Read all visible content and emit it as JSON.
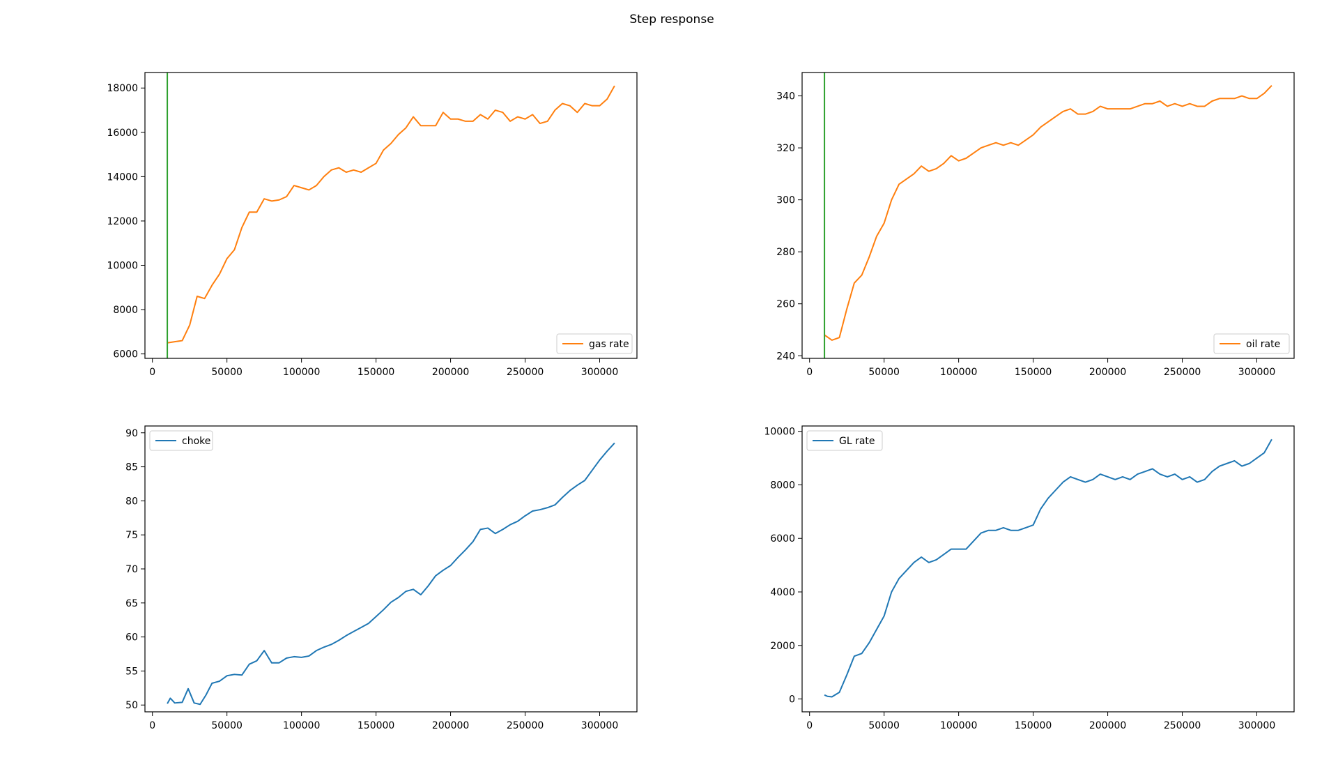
{
  "figure": {
    "title": "Step response"
  },
  "chart_data": [
    {
      "type": "line",
      "xlim": [
        -5000,
        325000
      ],
      "ylim": [
        5800,
        18700
      ],
      "xticks": [
        0,
        50000,
        100000,
        150000,
        200000,
        250000,
        300000
      ],
      "yticks": [
        6000,
        8000,
        10000,
        12000,
        14000,
        16000,
        18000
      ],
      "grid": false,
      "legend_position": "lower right",
      "vlines": [
        {
          "x": 10000,
          "color": "#2ca02c"
        }
      ],
      "series": [
        {
          "name": "gas rate",
          "color": "#ff7f0e",
          "x": [
            10000,
            15000,
            20000,
            25000,
            30000,
            35000,
            40000,
            45000,
            50000,
            55000,
            60000,
            65000,
            70000,
            75000,
            80000,
            85000,
            90000,
            95000,
            100000,
            105000,
            110000,
            115000,
            120000,
            125000,
            130000,
            135000,
            140000,
            145000,
            150000,
            155000,
            160000,
            165000,
            170000,
            175000,
            180000,
            185000,
            190000,
            195000,
            200000,
            205000,
            210000,
            215000,
            220000,
            225000,
            230000,
            235000,
            240000,
            245000,
            250000,
            255000,
            260000,
            265000,
            270000,
            275000,
            280000,
            285000,
            290000,
            295000,
            300000,
            305000,
            310000
          ],
          "y": [
            6500,
            6550,
            6600,
            7300,
            8600,
            8500,
            9100,
            9600,
            10300,
            10700,
            11700,
            12400,
            12400,
            13000,
            12900,
            12950,
            13100,
            13600,
            13500,
            13400,
            13600,
            14000,
            14300,
            14400,
            14200,
            14300,
            14200,
            14400,
            14600,
            15200,
            15500,
            15900,
            16200,
            16700,
            16300,
            16300,
            16300,
            16900,
            16600,
            16600,
            16500,
            16500,
            16800,
            16600,
            17000,
            16900,
            16500,
            16700,
            16600,
            16800,
            16400,
            16500,
            17000,
            17300,
            17200,
            16900,
            17300,
            17200,
            17200,
            17500,
            18100
          ]
        }
      ]
    },
    {
      "type": "line",
      "xlim": [
        -5000,
        325000
      ],
      "ylim": [
        239,
        349
      ],
      "xticks": [
        0,
        50000,
        100000,
        150000,
        200000,
        250000,
        300000
      ],
      "yticks": [
        240,
        260,
        280,
        300,
        320,
        340
      ],
      "grid": false,
      "legend_position": "lower right",
      "vlines": [
        {
          "x": 10000,
          "color": "#2ca02c"
        }
      ],
      "series": [
        {
          "name": "oil rate",
          "color": "#ff7f0e",
          "x": [
            10000,
            15000,
            20000,
            25000,
            30000,
            35000,
            40000,
            45000,
            50000,
            55000,
            60000,
            65000,
            70000,
            75000,
            80000,
            85000,
            90000,
            95000,
            100000,
            105000,
            110000,
            115000,
            120000,
            125000,
            130000,
            135000,
            140000,
            145000,
            150000,
            155000,
            160000,
            165000,
            170000,
            175000,
            180000,
            185000,
            190000,
            195000,
            200000,
            205000,
            210000,
            215000,
            220000,
            225000,
            230000,
            235000,
            240000,
            245000,
            250000,
            255000,
            260000,
            265000,
            270000,
            275000,
            280000,
            285000,
            290000,
            295000,
            300000,
            305000,
            310000
          ],
          "y": [
            248,
            246,
            247,
            258,
            268,
            271,
            278,
            286,
            291,
            300,
            306,
            308,
            310,
            313,
            311,
            312,
            314,
            317,
            315,
            316,
            318,
            320,
            321,
            322,
            321,
            322,
            321,
            323,
            325,
            328,
            330,
            332,
            334,
            335,
            333,
            333,
            334,
            336,
            335,
            335,
            335,
            335,
            336,
            337,
            337,
            338,
            336,
            337,
            336,
            337,
            336,
            336,
            338,
            339,
            339,
            339,
            340,
            339,
            339,
            341,
            344
          ]
        }
      ]
    },
    {
      "type": "line",
      "xlim": [
        -5000,
        325000
      ],
      "ylim": [
        49,
        91
      ],
      "xticks": [
        0,
        50000,
        100000,
        150000,
        200000,
        250000,
        300000
      ],
      "yticks": [
        50,
        55,
        60,
        65,
        70,
        75,
        80,
        85,
        90
      ],
      "grid": false,
      "legend_position": "upper left",
      "vlines": [],
      "series": [
        {
          "name": "choke",
          "color": "#1f77b4",
          "x": [
            10000,
            12000,
            15000,
            20000,
            24000,
            28000,
            32000,
            36000,
            40000,
            45000,
            50000,
            55000,
            60000,
            65000,
            70000,
            75000,
            80000,
            85000,
            90000,
            95000,
            100000,
            105000,
            110000,
            115000,
            120000,
            125000,
            130000,
            135000,
            140000,
            145000,
            150000,
            155000,
            160000,
            165000,
            170000,
            175000,
            180000,
            185000,
            190000,
            195000,
            200000,
            205000,
            210000,
            215000,
            220000,
            225000,
            230000,
            235000,
            240000,
            245000,
            250000,
            255000,
            260000,
            265000,
            270000,
            275000,
            280000,
            285000,
            290000,
            295000,
            300000,
            305000,
            310000
          ],
          "y": [
            50.2,
            51.0,
            50.3,
            50.4,
            52.4,
            50.3,
            50.1,
            51.5,
            53.2,
            53.5,
            54.3,
            54.5,
            54.4,
            56.0,
            56.5,
            58.0,
            56.2,
            56.2,
            56.9,
            57.1,
            57.0,
            57.2,
            58.0,
            58.5,
            58.9,
            59.5,
            60.2,
            60.8,
            61.4,
            62.0,
            63.0,
            64.0,
            65.1,
            65.8,
            66.7,
            67.0,
            66.2,
            67.5,
            69.0,
            69.8,
            70.5,
            71.7,
            72.8,
            74.0,
            75.8,
            76.0,
            75.2,
            75.8,
            76.5,
            77.0,
            77.8,
            78.5,
            78.7,
            79.0,
            79.4,
            80.5,
            81.5,
            82.3,
            83.0,
            84.5,
            86.0,
            87.3,
            88.5
          ]
        }
      ]
    },
    {
      "type": "line",
      "xlim": [
        -5000,
        325000
      ],
      "ylim": [
        -480,
        10200
      ],
      "xticks": [
        0,
        50000,
        100000,
        150000,
        200000,
        250000,
        300000
      ],
      "yticks": [
        0,
        2000,
        4000,
        6000,
        8000,
        10000
      ],
      "grid": false,
      "legend_position": "upper left",
      "vlines": [],
      "series": [
        {
          "name": "GL rate",
          "color": "#1f77b4",
          "x": [
            10000,
            12000,
            15000,
            20000,
            25000,
            30000,
            35000,
            40000,
            45000,
            50000,
            55000,
            60000,
            65000,
            70000,
            75000,
            80000,
            85000,
            90000,
            95000,
            100000,
            105000,
            110000,
            115000,
            120000,
            125000,
            130000,
            135000,
            140000,
            145000,
            150000,
            155000,
            160000,
            165000,
            170000,
            175000,
            180000,
            185000,
            190000,
            195000,
            200000,
            205000,
            210000,
            215000,
            220000,
            225000,
            230000,
            235000,
            240000,
            245000,
            250000,
            255000,
            260000,
            265000,
            270000,
            275000,
            280000,
            285000,
            290000,
            295000,
            300000,
            305000,
            310000
          ],
          "y": [
            150,
            100,
            80,
            250,
            900,
            1600,
            1700,
            2100,
            2600,
            3100,
            4000,
            4500,
            4800,
            5100,
            5300,
            5100,
            5200,
            5400,
            5600,
            5600,
            5600,
            5900,
            6200,
            6300,
            6300,
            6400,
            6300,
            6300,
            6400,
            6500,
            7100,
            7500,
            7800,
            8100,
            8300,
            8200,
            8100,
            8200,
            8400,
            8300,
            8200,
            8300,
            8200,
            8400,
            8500,
            8600,
            8400,
            8300,
            8400,
            8200,
            8300,
            8100,
            8200,
            8500,
            8700,
            8800,
            8900,
            8700,
            8800,
            9000,
            9200,
            9700
          ]
        }
      ]
    }
  ]
}
